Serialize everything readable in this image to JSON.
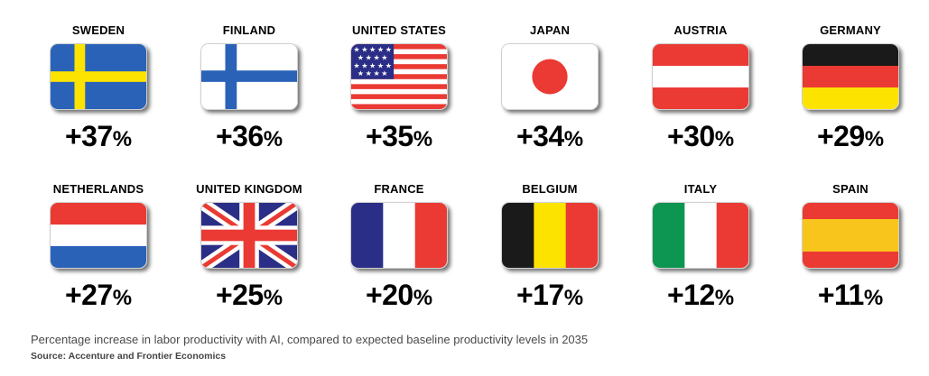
{
  "chart_data": {
    "type": "table",
    "title": "",
    "unit": "%",
    "categories": [
      "SWEDEN",
      "FINLAND",
      "UNITED STATES",
      "JAPAN",
      "AUSTRIA",
      "GERMANY",
      "NETHERLANDS",
      "UNITED KINGDOM",
      "FRANCE",
      "BELGIUM",
      "ITALY",
      "SPAIN"
    ],
    "values": [
      37,
      36,
      35,
      34,
      30,
      29,
      27,
      25,
      20,
      17,
      12,
      11
    ],
    "flags": [
      "sweden-flag-icon",
      "finland-flag-icon",
      "united-states-flag-icon",
      "japan-flag-icon",
      "austria-flag-icon",
      "germany-flag-icon",
      "netherlands-flag-icon",
      "united-kingdom-flag-icon",
      "france-flag-icon",
      "belgium-flag-icon",
      "italy-flag-icon",
      "spain-flag-icon"
    ]
  },
  "colors": {
    "blue": "#2a62b8",
    "yellow": "#fde300",
    "red": "#ea3a33",
    "white": "#ffffff",
    "black": "#1a1a1a",
    "navy": "#2b2e86",
    "green": "#0d9652",
    "spain_yellow": "#f7c51c",
    "caption": "#4a4a4a"
  },
  "caption": "Percentage increase in labor productivity with AI, compared to expected baseline productivity levels in 2035",
  "source": "Source: Accenture and Frontier Economics"
}
